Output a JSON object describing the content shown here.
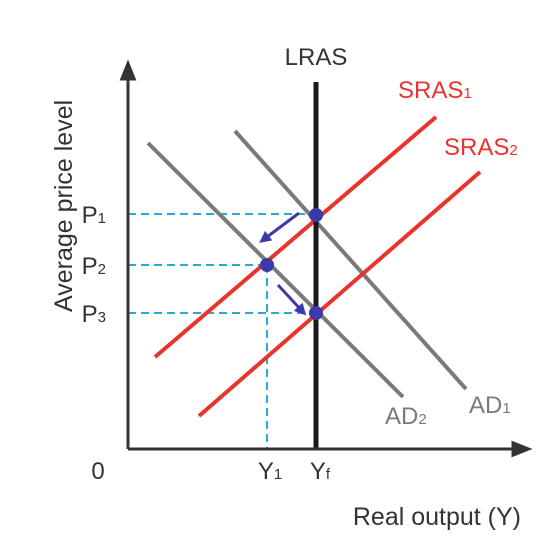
{
  "axes": {
    "y_label": "Average price level",
    "x_label": "Real output (Y)",
    "origin_label": "0"
  },
  "curves": {
    "lras": "LRAS",
    "sras1": "SRAS",
    "sras1_sub": "1",
    "sras2": "SRAS",
    "sras2_sub": "2",
    "ad1": "AD",
    "ad1_sub": "1",
    "ad2": "AD",
    "ad2_sub": "2"
  },
  "price_ticks": [
    {
      "main": "P",
      "sub": "1"
    },
    {
      "main": "P",
      "sub": "2"
    },
    {
      "main": "P",
      "sub": "3"
    }
  ],
  "output_ticks": [
    {
      "main": "Y",
      "sub": "1"
    },
    {
      "main": "Y",
      "sub": "f"
    }
  ],
  "colors": {
    "axis": "#333333",
    "lras": "#1a1a1a",
    "sras": "#e8342c",
    "ad": "#7a7a7a",
    "guide": "#29a8df",
    "point": "#3b3aa8",
    "arrow": "#3b3aa8"
  }
}
